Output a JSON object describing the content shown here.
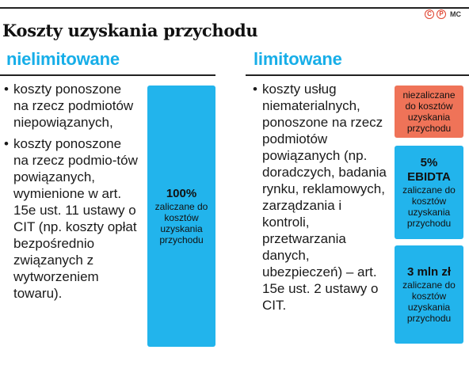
{
  "header": {
    "title": "Koszty uzyskania przychodu",
    "badges": [
      "C",
      "P"
    ],
    "source": "MC"
  },
  "left": {
    "heading": "nielimitowane",
    "items": [
      "koszty ponoszone na rzecz podmiotów niepowiązanych,",
      "koszty ponoszone na rzecz podmio-tów powiązanych, wymienione w art. 15e ust. 11 ustawy o CIT (np. koszty opłat bezpośrednio związanych z wytworzeniem towaru)."
    ],
    "box": {
      "value": "100%",
      "text": "zaliczane do kosztów uzyskania przychodu",
      "color": "#22b4ec"
    }
  },
  "right": {
    "heading": "limitowane",
    "items": [
      "koszty usług niematerialnych, ponoszone na rzecz podmiotów powiązanych (np. doradczych, badania rynku, reklamowych, zarządzania i kontroli, przetwarzania danych, ubezpieczeń) – art. 15e ust. 2 ustawy o CIT."
    ],
    "boxes": [
      {
        "value": "",
        "text": "niezaliczane do kosztów uzyskania przychodu",
        "color": "#ef7358"
      },
      {
        "value": "5% EBIDTA",
        "text": "zaliczane do kosztów uzyskania przychodu",
        "color": "#22b4ec"
      },
      {
        "value": "3 mln zł",
        "text": "zaliczane do kosztów uzyskania przychodu",
        "color": "#22b4ec"
      }
    ]
  }
}
